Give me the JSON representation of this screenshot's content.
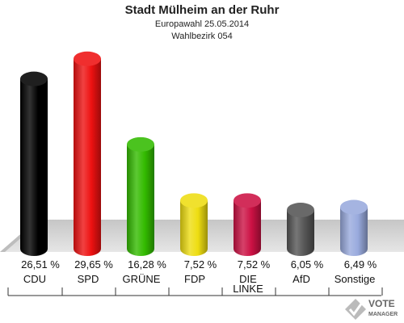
{
  "header": {
    "title": "Stadt Mülheim an der Ruhr",
    "subtitle": "Europawahl 25.05.2014",
    "district": "Wahlbezirk 054"
  },
  "chart_data": {
    "type": "bar",
    "title": "Stadt Mülheim an der Ruhr",
    "subtitle": "Europawahl 25.05.2014",
    "categories": [
      "CDU",
      "SPD",
      "GRÜNE",
      "FDP",
      "DIE LINKE",
      "AfD",
      "Sonstige"
    ],
    "category_lines": [
      [
        "CDU"
      ],
      [
        "SPD"
      ],
      [
        "GRÜNE"
      ],
      [
        "FDP"
      ],
      [
        "DIE",
        "LINKE"
      ],
      [
        "AfD"
      ],
      [
        "Sonstige"
      ]
    ],
    "values": [
      26.51,
      29.65,
      16.28,
      7.52,
      7.52,
      6.05,
      6.49
    ],
    "value_labels": [
      "26,51 %",
      "29,65 %",
      "16,28 %",
      "7,52 %",
      "7,52 %",
      "6,05 %",
      "6,49 %"
    ],
    "colors": [
      "#000000",
      "#ee1111",
      "#33bb00",
      "#eedd11",
      "#cc1144",
      "#555555",
      "#99aadd"
    ],
    "xlabel": "",
    "ylabel": "",
    "ylim": [
      0,
      30
    ],
    "grid": false,
    "legend": "none"
  },
  "logo": {
    "line1": "VOTE",
    "line2": "MANAGER"
  }
}
